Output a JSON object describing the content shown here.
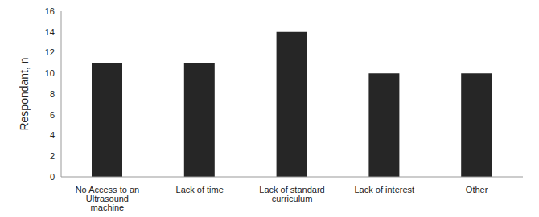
{
  "chart_data": {
    "type": "bar",
    "y_label": "Respondant, n",
    "categories": [
      "No Access to an Ultrasound machine",
      "Lack of time",
      "Lack of standard curriculum",
      "Lack of interest",
      "Other"
    ],
    "values": [
      11,
      11,
      14,
      10,
      10
    ],
    "color": "#262626",
    "ylim": [
      0,
      16
    ],
    "yticks": [
      0,
      2,
      4,
      6,
      8,
      10,
      12,
      14,
      16
    ],
    "grid": false
  }
}
